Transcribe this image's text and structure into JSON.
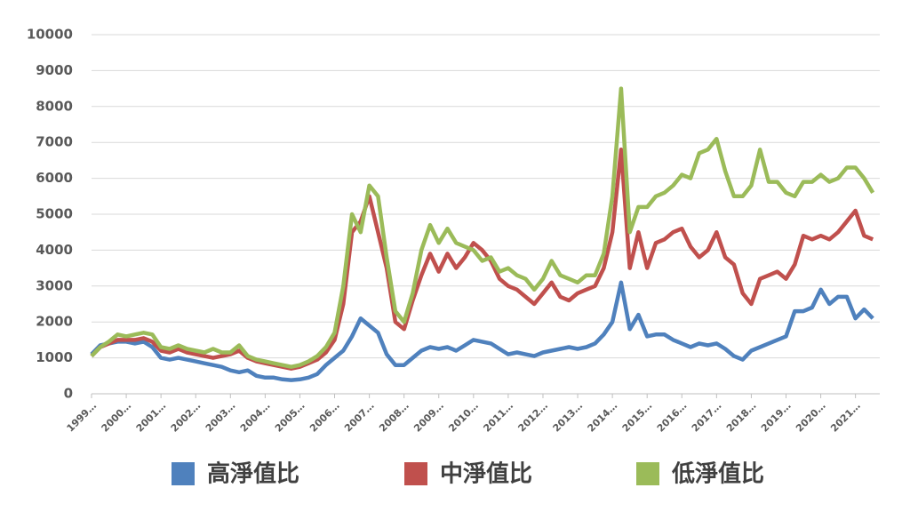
{
  "chart_data": {
    "type": "line",
    "x": [
      1999,
      1999.25,
      1999.5,
      1999.75,
      2000,
      2000.25,
      2000.5,
      2000.75,
      2001,
      2001.25,
      2001.5,
      2001.75,
      2002,
      2002.25,
      2002.5,
      2002.75,
      2003,
      2003.25,
      2003.5,
      2003.75,
      2004,
      2004.25,
      2004.5,
      2004.75,
      2005,
      2005.25,
      2005.5,
      2005.75,
      2006,
      2006.25,
      2006.5,
      2006.75,
      2007,
      2007.25,
      2007.5,
      2007.75,
      2008,
      2008.25,
      2008.5,
      2008.75,
      2009,
      2009.25,
      2009.5,
      2009.75,
      2010,
      2010.25,
      2010.5,
      2010.75,
      2011,
      2011.25,
      2011.5,
      2011.75,
      2012,
      2012.25,
      2012.5,
      2012.75,
      2013,
      2013.25,
      2013.5,
      2013.75,
      2014,
      2014.25,
      2014.5,
      2014.75,
      2015,
      2015.25,
      2015.5,
      2015.75,
      2016,
      2016.25,
      2016.5,
      2016.75,
      2017,
      2017.25,
      2017.5,
      2017.75,
      2018,
      2018.25,
      2018.5,
      2018.75,
      2019,
      2019.25,
      2019.5,
      2019.75,
      2020,
      2020.25,
      2020.5,
      2020.75,
      2021,
      2021.25,
      2021.5
    ],
    "series": [
      {
        "name": "高淨值比",
        "color": "#4f81bd",
        "values": [
          1100,
          1350,
          1400,
          1450,
          1450,
          1400,
          1450,
          1300,
          1000,
          950,
          1000,
          950,
          900,
          850,
          800,
          750,
          650,
          600,
          650,
          500,
          450,
          450,
          400,
          380,
          400,
          450,
          550,
          800,
          1000,
          1200,
          1600,
          2100,
          1900,
          1700,
          1100,
          800,
          800,
          1000,
          1200,
          1300,
          1250,
          1300,
          1200,
          1350,
          1500,
          1450,
          1400,
          1250,
          1100,
          1150,
          1100,
          1050,
          1150,
          1200,
          1250,
          1300,
          1250,
          1300,
          1400,
          1650,
          2000,
          3100,
          1800,
          2200,
          1600,
          1650,
          1650,
          1500,
          1400,
          1300,
          1400,
          1350,
          1400,
          1250,
          1050,
          950,
          1200,
          1300,
          1400,
          1500,
          1600,
          2300,
          2300,
          2400,
          2900,
          2500,
          2700,
          2700,
          2100,
          2350,
          2100
        ]
      },
      {
        "name": "中淨值比",
        "color": "#c0504d",
        "values": [
          1050,
          1300,
          1400,
          1500,
          1500,
          1500,
          1550,
          1450,
          1200,
          1150,
          1250,
          1150,
          1100,
          1050,
          1000,
          1050,
          1100,
          1200,
          1000,
          900,
          850,
          800,
          750,
          700,
          750,
          850,
          950,
          1150,
          1500,
          2500,
          4500,
          4800,
          5500,
          4500,
          3500,
          2000,
          1800,
          2600,
          3300,
          3900,
          3400,
          3900,
          3500,
          3800,
          4200,
          4000,
          3700,
          3200,
          3000,
          2900,
          2700,
          2500,
          2800,
          3100,
          2700,
          2600,
          2800,
          2900,
          3000,
          3500,
          4500,
          6800,
          3500,
          4500,
          3500,
          4200,
          4300,
          4500,
          4600,
          4100,
          3800,
          4000,
          4500,
          3800,
          3600,
          2800,
          2500,
          3200,
          3300,
          3400,
          3200,
          3600,
          4400,
          4300,
          4400,
          4300,
          4500,
          4800,
          5100,
          4400,
          4300
        ]
      },
      {
        "name": "低淨值比",
        "color": "#9bbb59",
        "values": [
          1050,
          1300,
          1450,
          1650,
          1600,
          1650,
          1700,
          1650,
          1300,
          1250,
          1350,
          1250,
          1200,
          1150,
          1250,
          1150,
          1150,
          1350,
          1050,
          950,
          900,
          850,
          800,
          750,
          800,
          900,
          1050,
          1300,
          1700,
          3000,
          5000,
          4500,
          5800,
          5500,
          3800,
          2300,
          2000,
          2800,
          4000,
          4700,
          4200,
          4600,
          4200,
          4100,
          4000,
          3700,
          3800,
          3400,
          3500,
          3300,
          3200,
          2900,
          3200,
          3700,
          3300,
          3200,
          3100,
          3300,
          3300,
          3900,
          5500,
          8500,
          4500,
          5200,
          5200,
          5500,
          5600,
          5800,
          6100,
          6000,
          6700,
          6800,
          7100,
          6200,
          5500,
          5500,
          5800,
          6800,
          5900,
          5900,
          5600,
          5500,
          5900,
          5900,
          6100,
          5900,
          6000,
          6300,
          6300,
          6000,
          5600
        ]
      }
    ],
    "xlim": [
      1999,
      2021.7
    ],
    "xticks": [
      {
        "value": 1999,
        "label": "1999…"
      },
      {
        "value": 2000,
        "label": "2000…"
      },
      {
        "value": 2001,
        "label": "2001…"
      },
      {
        "value": 2002,
        "label": "2002…"
      },
      {
        "value": 2003,
        "label": "2003…"
      },
      {
        "value": 2004,
        "label": "2004…"
      },
      {
        "value": 2005,
        "label": "2005…"
      },
      {
        "value": 2006,
        "label": "2006…"
      },
      {
        "value": 2007,
        "label": "2007…"
      },
      {
        "value": 2008,
        "label": "2008…"
      },
      {
        "value": 2009,
        "label": "2009…"
      },
      {
        "value": 2010,
        "label": "2010…"
      },
      {
        "value": 2011,
        "label": "2011…"
      },
      {
        "value": 2012,
        "label": "2012…"
      },
      {
        "value": 2013,
        "label": "2013…"
      },
      {
        "value": 2014,
        "label": "2014…"
      },
      {
        "value": 2015,
        "label": "2015…"
      },
      {
        "value": 2016,
        "label": "2016…"
      },
      {
        "value": 2017,
        "label": "2017…"
      },
      {
        "value": 2018,
        "label": "2018…"
      },
      {
        "value": 2019,
        "label": "2019…"
      },
      {
        "value": 2020,
        "label": "2020…"
      },
      {
        "value": 2021,
        "label": "2021…"
      }
    ],
    "ylim": [
      0,
      10000
    ],
    "yticks": [
      0,
      1000,
      2000,
      3000,
      4000,
      5000,
      6000,
      7000,
      8000,
      9000,
      10000
    ],
    "grid": true,
    "legend": "bottom"
  }
}
